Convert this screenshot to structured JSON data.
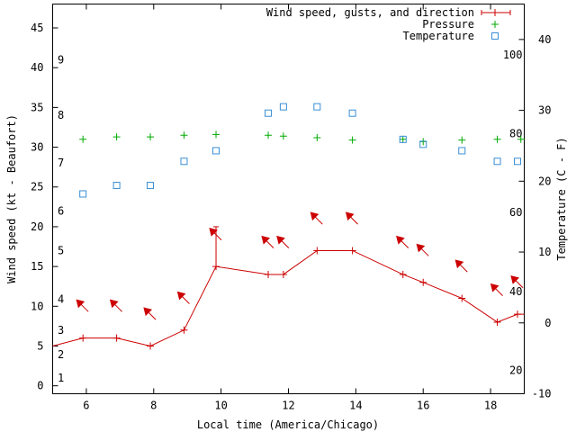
{
  "chart_data": {
    "type": "line",
    "xlabel": "Local time (America/Chicago)",
    "ylabel_left": "Wind speed (kt - Beaufort)",
    "ylabel_right": "Temperature (C - F)",
    "xlim": [
      5,
      19
    ],
    "ylim_left": [
      -1,
      48
    ],
    "ylim_temp_c": [
      -10,
      45
    ],
    "x_ticks": [
      "6",
      "8",
      "10",
      "12",
      "14",
      "16",
      "18"
    ],
    "y_left_ticks": [
      "0",
      "5",
      "10",
      "15",
      "20",
      "25",
      "30",
      "35",
      "40",
      "45"
    ],
    "y_temp_c_ticks": [
      "-10",
      "0",
      "10",
      "20",
      "30",
      "40"
    ],
    "beaufort_labels": [
      {
        "label": "1",
        "kt": 1
      },
      {
        "label": "2",
        "kt": 3.9
      },
      {
        "label": "3",
        "kt": 7
      },
      {
        "label": "4",
        "kt": 10.9
      },
      {
        "label": "5",
        "kt": 17
      },
      {
        "label": "6",
        "kt": 22
      },
      {
        "label": "7",
        "kt": 28
      },
      {
        "label": "8",
        "kt": 34
      },
      {
        "label": "9",
        "kt": 41
      }
    ],
    "fahrenheit_labels": [
      {
        "label": "20",
        "c": -6.7
      },
      {
        "label": "40",
        "c": 4.4
      },
      {
        "label": "60",
        "c": 15.6
      },
      {
        "label": "80",
        "c": 26.7
      },
      {
        "label": "100",
        "c": 37.8
      }
    ],
    "legend_position": "top-right",
    "series": [
      {
        "name": "Wind speed, gusts, and direction",
        "color": "#cc0000",
        "x": [
          5.0,
          5.9,
          6.9,
          7.9,
          8.9,
          9.85,
          11.4,
          11.85,
          12.85,
          13.9,
          15.4,
          16.0,
          17.15,
          18.2,
          18.8,
          19.0
        ],
        "y": [
          5,
          6,
          6,
          5,
          7,
          15,
          14,
          14,
          17,
          17,
          14,
          13,
          11,
          8,
          9,
          9
        ],
        "gusts": [
          {
            "x": 9.85,
            "y": 20
          }
        ],
        "direction_arrows_x": [
          5.9,
          6.9,
          7.9,
          8.9,
          9.85,
          11.4,
          11.85,
          12.85,
          13.9,
          15.4,
          16.0,
          17.15,
          18.2,
          18.8
        ]
      },
      {
        "name": "Pressure",
        "color": "#00aa00",
        "x": [
          5.9,
          6.9,
          7.9,
          8.9,
          9.85,
          11.4,
          11.85,
          12.85,
          13.9,
          15.4,
          16.0,
          17.15,
          18.2,
          18.9
        ],
        "y": [
          31.0,
          31.3,
          31.3,
          31.5,
          31.6,
          31.5,
          31.4,
          31.2,
          30.9,
          31.0,
          30.7,
          30.9,
          31.0,
          31.0
        ]
      },
      {
        "name": "Temperature",
        "color": "#3a8ed6",
        "x": [
          5.9,
          6.9,
          7.9,
          8.9,
          9.85,
          11.4,
          11.85,
          12.85,
          13.9,
          15.4,
          16.0,
          17.15,
          18.2,
          18.8
        ],
        "y": [
          18.2,
          19.4,
          19.4,
          22.8,
          24.3,
          29.6,
          30.5,
          30.5,
          29.6,
          25.9,
          25.2,
          24.3,
          22.8,
          22.8
        ]
      }
    ]
  }
}
